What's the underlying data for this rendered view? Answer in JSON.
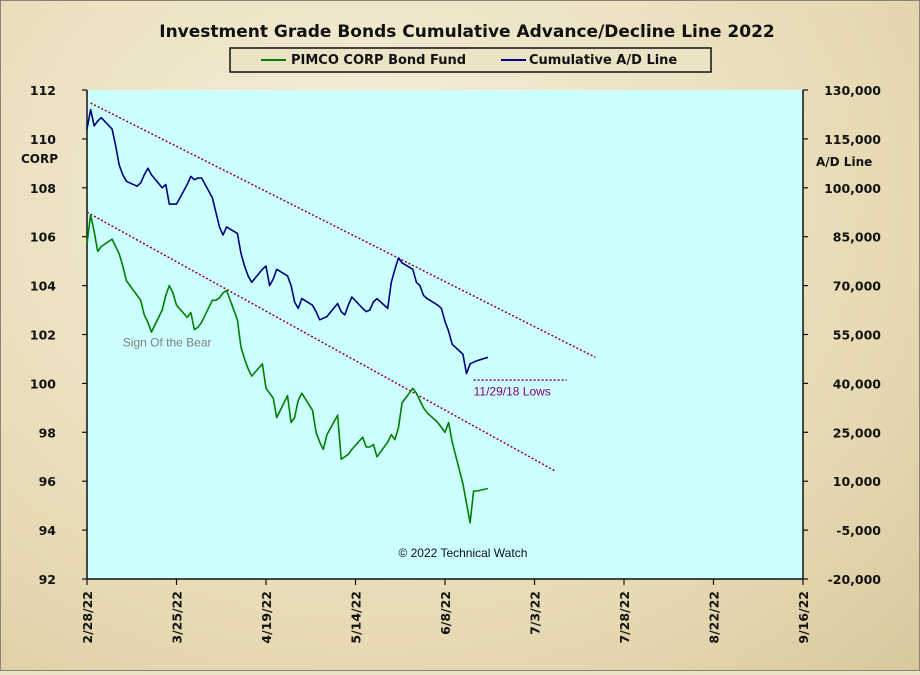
{
  "colors": {
    "plot_background": "#ccffff",
    "corp_line": "#008000",
    "ad_line": "#000080",
    "trendline": "#990033",
    "lows_line": "#800080"
  },
  "chart_data": {
    "type": "line",
    "title": "Investment Grade Bonds Cumulative  Advance/Decline  Line  2022",
    "legend_position": "top-center",
    "grid": false,
    "x_tick_labels": [
      "2/28/22",
      "3/25/22",
      "4/19/22",
      "5/14/22",
      "6/8/22",
      "7/3/22",
      "7/28/22",
      "8/22/22",
      "9/16/22"
    ],
    "x_range": [
      "2022-02-28",
      "2022-09-16"
    ],
    "y_left": {
      "label": "CORP",
      "range": [
        92,
        112
      ],
      "ticks": [
        "92",
        "94",
        "96",
        "98",
        "100",
        "102",
        "104",
        "106",
        "108",
        "110",
        "112"
      ]
    },
    "y_right": {
      "label": "A/D Line",
      "range": [
        -20000,
        130000
      ],
      "ticks": [
        "-20,000",
        "-5,000",
        "10,000",
        "25,000",
        "40,000",
        "55,000",
        "70,000",
        "85,000",
        "100,000",
        "115,000",
        "130,000"
      ]
    },
    "series": [
      {
        "name": "PIMCO CORP Bond Fund",
        "axis": "left",
        "points": [
          [
            "2022-02-28",
            105.7
          ],
          [
            "2022-03-01",
            106.9
          ],
          [
            "2022-03-02",
            106.2
          ],
          [
            "2022-03-03",
            105.4
          ],
          [
            "2022-03-04",
            105.6
          ],
          [
            "2022-03-07",
            105.9
          ],
          [
            "2022-03-08",
            105.6
          ],
          [
            "2022-03-09",
            105.3
          ],
          [
            "2022-03-10",
            104.8
          ],
          [
            "2022-03-11",
            104.2
          ],
          [
            "2022-03-14",
            103.6
          ],
          [
            "2022-03-15",
            103.4
          ],
          [
            "2022-03-16",
            102.8
          ],
          [
            "2022-03-17",
            102.5
          ],
          [
            "2022-03-18",
            102.1
          ],
          [
            "2022-03-21",
            103.0
          ],
          [
            "2022-03-22",
            103.6
          ],
          [
            "2022-03-23",
            104.0
          ],
          [
            "2022-03-24",
            103.7
          ],
          [
            "2022-03-25",
            103.2
          ],
          [
            "2022-03-28",
            102.7
          ],
          [
            "2022-03-29",
            102.9
          ],
          [
            "2022-03-30",
            102.2
          ],
          [
            "2022-03-31",
            102.3
          ],
          [
            "2022-04-01",
            102.5
          ],
          [
            "2022-04-04",
            103.4
          ],
          [
            "2022-04-05",
            103.4
          ],
          [
            "2022-04-06",
            103.5
          ],
          [
            "2022-04-07",
            103.7
          ],
          [
            "2022-04-08",
            103.8
          ],
          [
            "2022-04-11",
            102.6
          ],
          [
            "2022-04-12",
            101.5
          ],
          [
            "2022-04-13",
            101.0
          ],
          [
            "2022-04-14",
            100.6
          ],
          [
            "2022-04-15",
            100.3
          ],
          [
            "2022-04-18",
            100.8
          ],
          [
            "2022-04-19",
            99.8
          ],
          [
            "2022-04-20",
            99.6
          ],
          [
            "2022-04-21",
            99.4
          ],
          [
            "2022-04-22",
            98.6
          ],
          [
            "2022-04-25",
            99.5
          ],
          [
            "2022-04-26",
            98.4
          ],
          [
            "2022-04-27",
            98.6
          ],
          [
            "2022-04-28",
            99.3
          ],
          [
            "2022-04-29",
            99.6
          ],
          [
            "2022-05-02",
            98.9
          ],
          [
            "2022-05-03",
            98.0
          ],
          [
            "2022-05-04",
            97.6
          ],
          [
            "2022-05-05",
            97.3
          ],
          [
            "2022-05-06",
            97.9
          ],
          [
            "2022-05-09",
            98.7
          ],
          [
            "2022-05-10",
            96.9
          ],
          [
            "2022-05-11",
            97.0
          ],
          [
            "2022-05-12",
            97.1
          ],
          [
            "2022-05-13",
            97.3
          ],
          [
            "2022-05-16",
            97.8
          ],
          [
            "2022-05-17",
            97.4
          ],
          [
            "2022-05-18",
            97.4
          ],
          [
            "2022-05-19",
            97.5
          ],
          [
            "2022-05-20",
            97.0
          ],
          [
            "2022-05-23",
            97.6
          ],
          [
            "2022-05-24",
            97.9
          ],
          [
            "2022-05-25",
            97.7
          ],
          [
            "2022-05-26",
            98.2
          ],
          [
            "2022-05-27",
            99.2
          ],
          [
            "2022-05-30",
            99.8
          ],
          [
            "2022-05-31",
            99.6
          ],
          [
            "2022-06-01",
            99.3
          ],
          [
            "2022-06-02",
            99.0
          ],
          [
            "2022-06-03",
            98.8
          ],
          [
            "2022-06-06",
            98.4
          ],
          [
            "2022-06-07",
            98.2
          ],
          [
            "2022-06-08",
            98.0
          ],
          [
            "2022-06-09",
            98.4
          ],
          [
            "2022-06-10",
            97.6
          ],
          [
            "2022-06-13",
            95.9
          ],
          [
            "2022-06-14",
            95.1
          ],
          [
            "2022-06-15",
            94.3
          ],
          [
            "2022-06-16",
            95.6
          ],
          [
            "2022-06-17",
            95.6
          ],
          [
            "2022-06-20",
            95.7
          ]
        ]
      },
      {
        "name": "Cumulative A/D Line",
        "axis": "right",
        "points": [
          [
            "2022-02-28",
            118000
          ],
          [
            "2022-03-01",
            124000
          ],
          [
            "2022-03-02",
            119000
          ],
          [
            "2022-03-03",
            120500
          ],
          [
            "2022-03-04",
            121500
          ],
          [
            "2022-03-07",
            118000
          ],
          [
            "2022-03-08",
            113000
          ],
          [
            "2022-03-09",
            107000
          ],
          [
            "2022-03-10",
            104000
          ],
          [
            "2022-03-11",
            102000
          ],
          [
            "2022-03-14",
            100500
          ],
          [
            "2022-03-15",
            101500
          ],
          [
            "2022-03-16",
            104000
          ],
          [
            "2022-03-17",
            106000
          ],
          [
            "2022-03-18",
            104000
          ],
          [
            "2022-03-21",
            100000
          ],
          [
            "2022-03-22",
            101000
          ],
          [
            "2022-03-23",
            95000
          ],
          [
            "2022-03-24",
            95000
          ],
          [
            "2022-03-25",
            95000
          ],
          [
            "2022-03-28",
            101000
          ],
          [
            "2022-03-29",
            103500
          ],
          [
            "2022-03-30",
            102500
          ],
          [
            "2022-03-31",
            103000
          ],
          [
            "2022-04-01",
            103000
          ],
          [
            "2022-04-04",
            97000
          ],
          [
            "2022-04-05",
            92500
          ],
          [
            "2022-04-06",
            88000
          ],
          [
            "2022-04-07",
            85500
          ],
          [
            "2022-04-08",
            88000
          ],
          [
            "2022-04-11",
            86000
          ],
          [
            "2022-04-12",
            80000
          ],
          [
            "2022-04-13",
            76000
          ],
          [
            "2022-04-14",
            73000
          ],
          [
            "2022-04-15",
            71000
          ],
          [
            "2022-04-18",
            75000
          ],
          [
            "2022-04-19",
            76000
          ],
          [
            "2022-04-20",
            70000
          ],
          [
            "2022-04-21",
            72000
          ],
          [
            "2022-04-22",
            75000
          ],
          [
            "2022-04-25",
            73000
          ],
          [
            "2022-04-26",
            70000
          ],
          [
            "2022-04-27",
            65000
          ],
          [
            "2022-04-28",
            63000
          ],
          [
            "2022-04-29",
            66000
          ],
          [
            "2022-05-02",
            64000
          ],
          [
            "2022-05-03",
            62000
          ],
          [
            "2022-05-04",
            59500
          ],
          [
            "2022-05-05",
            60000
          ],
          [
            "2022-05-06",
            60500
          ],
          [
            "2022-05-09",
            64500
          ],
          [
            "2022-05-10",
            62000
          ],
          [
            "2022-05-11",
            61000
          ],
          [
            "2022-05-12",
            64000
          ],
          [
            "2022-05-13",
            66500
          ],
          [
            "2022-05-16",
            63000
          ],
          [
            "2022-05-17",
            62000
          ],
          [
            "2022-05-18",
            62500
          ],
          [
            "2022-05-19",
            65000
          ],
          [
            "2022-05-20",
            66000
          ],
          [
            "2022-05-23",
            63000
          ],
          [
            "2022-05-24",
            71000
          ],
          [
            "2022-05-25",
            75000
          ],
          [
            "2022-05-26",
            78500
          ],
          [
            "2022-05-27",
            77000
          ],
          [
            "2022-05-30",
            75000
          ],
          [
            "2022-05-31",
            71000
          ],
          [
            "2022-06-01",
            70000
          ],
          [
            "2022-06-02",
            67000
          ],
          [
            "2022-06-03",
            66000
          ],
          [
            "2022-06-06",
            64000
          ],
          [
            "2022-06-07",
            63000
          ],
          [
            "2022-06-08",
            59000
          ],
          [
            "2022-06-09",
            56000
          ],
          [
            "2022-06-10",
            52000
          ],
          [
            "2022-06-13",
            49000
          ],
          [
            "2022-06-14",
            43000
          ],
          [
            "2022-06-15",
            46000
          ],
          [
            "2022-06-16",
            46500
          ],
          [
            "2022-06-17",
            47000
          ],
          [
            "2022-06-20",
            48000
          ]
        ]
      }
    ],
    "trendlines": [
      {
        "axis": "right",
        "from": [
          "2022-03-01",
          126000
        ],
        "to": [
          "2022-07-20",
          48000
        ]
      },
      {
        "axis": "left",
        "from": [
          "2022-02-28",
          107.0
        ],
        "to": [
          "2022-07-09",
          96.4
        ]
      }
    ],
    "reference_lines": [
      {
        "axis": "right",
        "from": [
          "2022-06-16",
          41000
        ],
        "to": [
          "2022-07-12",
          41000
        ]
      }
    ],
    "annotations": [
      {
        "text": "Sign Of the Bear",
        "at": [
          "2022-03-10",
          101.5
        ],
        "axis": "left",
        "color": "#808080"
      },
      {
        "text": "11/29/18  Lows",
        "at": [
          "2022-06-16",
          99.5
        ],
        "axis": "left",
        "color": "#800080"
      },
      {
        "text": "© 2022 Technical Watch",
        "at": [
          "2022-05-26",
          92.9
        ],
        "axis": "left",
        "color": "#111111"
      }
    ]
  }
}
